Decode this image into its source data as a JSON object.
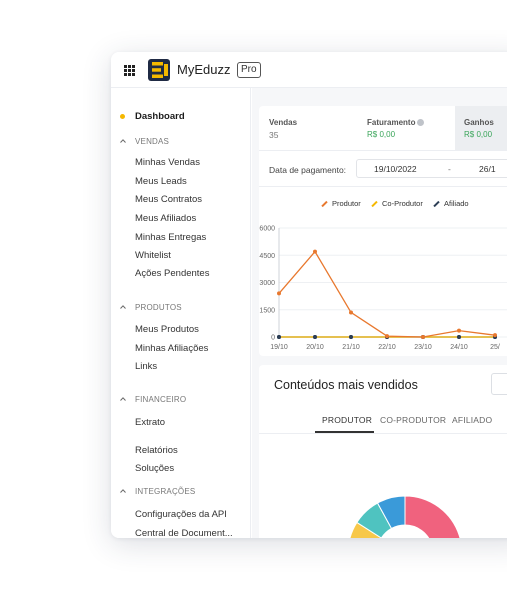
{
  "app": {
    "name": "MyEduzz",
    "badge": "Pro"
  },
  "sidebar": {
    "dashboard": "Dashboard",
    "sections": {
      "vendas": "VENDAS",
      "produtos": "PRODUTOS",
      "financeiro": "FINANCEIRO",
      "integracoes": "INTEGRAÇÕES"
    },
    "items": [
      "Minhas Vendas",
      "Meus Leads",
      "Meus Contratos",
      "Meus Afiliados",
      "Minhas Entregas",
      "Whitelist",
      "Ações Pendentes",
      "Meus Produtos",
      "Minhas Afiliações",
      "Links",
      "Extrato",
      "Relatórios",
      "Soluções",
      "Configurações da API",
      "Central de Document..."
    ]
  },
  "stats": {
    "vendas": {
      "label": "Vendas",
      "value": "35"
    },
    "faturamento": {
      "label": "Faturamento",
      "value": "R$ 0,00"
    },
    "ganhos": {
      "label": "Ganhos",
      "value": "R$ 0,00"
    }
  },
  "filter": {
    "label": "Data de pagamento:",
    "start": "19/10/2022",
    "separator": "-",
    "end": "26/1"
  },
  "colors": {
    "produtor": "#e8782e",
    "coprodutor": "#f5b800",
    "afiliado": "#2c3e55",
    "accent": "#f5b800"
  },
  "chart_data": {
    "type": "line",
    "categories": [
      "19/10",
      "20/10",
      "21/10",
      "22/10",
      "23/10",
      "24/10",
      "25/"
    ],
    "series": [
      {
        "name": "Produtor",
        "values": [
          2400,
          4700,
          1350,
          50,
          0,
          350,
          100
        ]
      },
      {
        "name": "Co-Produtor",
        "values": [
          0,
          0,
          0,
          0,
          0,
          0,
          0
        ]
      },
      {
        "name": "Afiliado",
        "values": [
          0,
          0,
          0,
          0,
          0,
          0,
          0
        ]
      }
    ],
    "yticks": [
      "6000",
      "4500",
      "3000",
      "1500",
      "0"
    ],
    "ylim": [
      0,
      6000
    ],
    "grid": true,
    "legend_position": "top"
  },
  "content": {
    "title": "Conteúdos mais vendidos",
    "tabs": [
      "PRODUTOR",
      "CO-PRODUTOR",
      "AFILIADO"
    ]
  },
  "donut": {
    "segments": [
      {
        "color": "#f0627e",
        "value": 40
      },
      {
        "color": "#f7a23a",
        "value": 27
      },
      {
        "color": "#f7c84a",
        "value": 17
      },
      {
        "color": "#4fc3c0",
        "value": 8
      },
      {
        "color": "#3a9ad9",
        "value": 8
      }
    ]
  }
}
